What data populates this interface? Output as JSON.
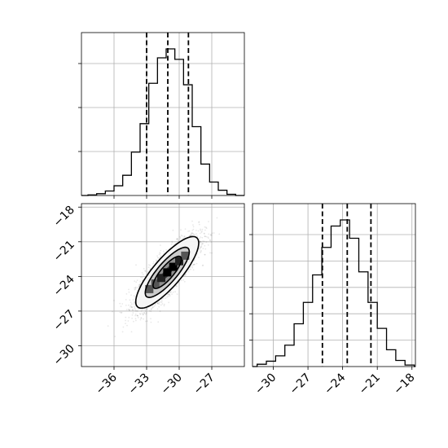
{
  "chart_data": {
    "type": "corner",
    "panels": [
      {
        "name": "hist-param-1",
        "type": "histogram",
        "x_range": [
          -39,
          -24
        ],
        "bin_edges": [
          -38.4,
          -37.6,
          -36.8,
          -36.0,
          -35.2,
          -34.4,
          -33.6,
          -32.8,
          -32.0,
          -31.2,
          -30.4,
          -29.6,
          -28.8,
          -28.0,
          -27.2,
          -26.4,
          -25.6,
          -24.8
        ],
        "counts": [
          0.4,
          1.2,
          3.0,
          6.5,
          13.5,
          29.0,
          48.0,
          75.0,
          92.0,
          98.0,
          91.0,
          74.0,
          46.0,
          21.0,
          9.0,
          3.5,
          0.8
        ],
        "quantiles": [
          -33.0,
          -31.05,
          -29.15
        ],
        "grid": true,
        "y_ticks_labeled": false
      },
      {
        "name": "hist-param-2",
        "type": "histogram",
        "x_range": [
          -31.8,
          -17.7
        ],
        "bin_edges": [
          -31.4,
          -30.6,
          -29.8,
          -29.0,
          -28.2,
          -27.4,
          -26.6,
          -25.8,
          -25.0,
          -24.2,
          -23.4,
          -22.6,
          -21.8,
          -21.0,
          -20.2,
          -19.4,
          -18.6,
          -17.8
        ],
        "counts": [
          1.5,
          3.5,
          7.0,
          14.0,
          28.0,
          42.0,
          60.0,
          78.0,
          92.0,
          96.0,
          84.0,
          62.0,
          42.0,
          25.0,
          11.0,
          4.0,
          1.0
        ],
        "quantiles": [
          -25.75,
          -23.6,
          -21.55
        ],
        "grid": true,
        "y_ticks_labeled": false
      },
      {
        "name": "scatter-2d",
        "type": "scatter-density",
        "x_range": [
          -39,
          -24
        ],
        "y_range": [
          -31.8,
          -17.7
        ],
        "center": [
          -31.1,
          -23.65
        ],
        "sigma": [
          1.45,
          1.55
        ],
        "correlation": 0.82,
        "grid": true
      }
    ],
    "x_ticks_param1": [
      "−36",
      "−33",
      "−30",
      "−27"
    ],
    "x_tick_values_param1": [
      -36,
      -33,
      -30,
      -27
    ],
    "y_ticks_param2": [
      "−18",
      "−21",
      "−24",
      "−27",
      "−30"
    ],
    "y_tick_values_param2": [
      -18,
      -21,
      -24,
      -27,
      -30
    ],
    "x_ticks_param2": [
      "−30",
      "−27",
      "−24",
      "−21",
      "−18"
    ],
    "x_tick_values_param2": [
      -30,
      -27,
      -24,
      -21,
      -18
    ]
  }
}
